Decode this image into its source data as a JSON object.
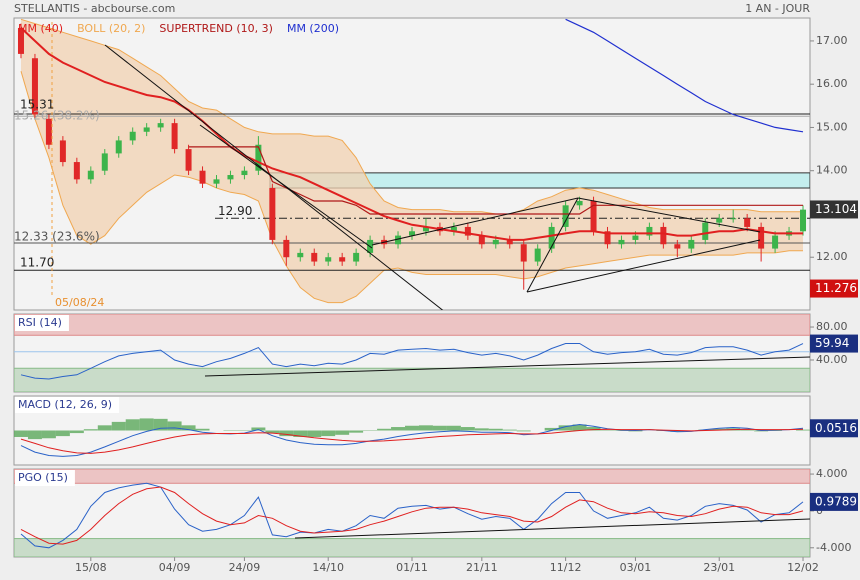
{
  "header": {
    "title": "STELLANTIS - abcbourse.com",
    "period": "1 AN - JOUR"
  },
  "chart_data": [
    {
      "type": "candlestick",
      "categories": [
        null,
        null,
        null,
        null,
        null,
        "15/08",
        null,
        null,
        null,
        null,
        null,
        "04/09",
        null,
        null,
        null,
        null,
        "24/09",
        null,
        null,
        null,
        null,
        null,
        "14/10",
        null,
        null,
        null,
        null,
        null,
        "01/11",
        null,
        null,
        null,
        null,
        "21/11",
        null,
        null,
        null,
        null,
        null,
        "11/12",
        null,
        null,
        null,
        null,
        "03/01",
        null,
        null,
        null,
        null,
        null,
        "23/01",
        null,
        null,
        null,
        null,
        null,
        "12/02"
      ],
      "open": [
        17.3,
        16.6,
        15.2,
        14.7,
        14.2,
        13.8,
        14.0,
        14.4,
        14.7,
        14.9,
        15.0,
        15.1,
        14.5,
        14.0,
        13.7,
        13.8,
        13.9,
        14.0,
        13.6,
        12.4,
        12.0,
        12.1,
        11.9,
        12.0,
        11.9,
        12.1,
        12.4,
        12.3,
        12.5,
        12.6,
        12.7,
        12.6,
        12.7,
        12.5,
        12.3,
        12.4,
        12.3,
        11.9,
        12.2,
        12.7,
        13.2,
        13.3,
        12.6,
        12.3,
        12.4,
        12.5,
        12.7,
        12.3,
        12.2,
        12.4,
        12.8,
        12.9,
        12.9,
        12.7,
        12.2,
        12.5,
        12.6
      ],
      "high": [
        17.4,
        16.7,
        15.3,
        14.8,
        14.3,
        14.1,
        14.5,
        14.8,
        15.0,
        15.1,
        15.2,
        15.2,
        14.6,
        14.1,
        13.9,
        14.0,
        14.1,
        14.8,
        13.7,
        12.5,
        12.2,
        12.2,
        12.1,
        12.1,
        12.2,
        12.5,
        12.5,
        12.6,
        12.7,
        12.9,
        12.8,
        12.8,
        12.8,
        12.6,
        12.5,
        12.5,
        12.4,
        12.3,
        12.8,
        13.3,
        13.4,
        13.4,
        12.7,
        12.5,
        12.6,
        12.8,
        12.8,
        12.4,
        12.5,
        12.9,
        13.0,
        13.1,
        13.0,
        12.8,
        12.6,
        12.7,
        13.2
      ],
      "low": [
        16.6,
        15.2,
        14.5,
        14.1,
        13.7,
        13.7,
        13.9,
        14.3,
        14.6,
        14.8,
        14.9,
        14.4,
        13.9,
        13.6,
        13.6,
        13.7,
        13.8,
        13.9,
        12.3,
        11.8,
        11.9,
        11.8,
        11.8,
        11.8,
        11.8,
        12.0,
        12.2,
        12.2,
        12.4,
        12.5,
        12.5,
        12.5,
        12.4,
        12.2,
        12.2,
        12.2,
        11.25,
        11.8,
        12.1,
        12.6,
        13.1,
        12.5,
        12.2,
        12.2,
        12.3,
        12.4,
        12.2,
        12.0,
        12.1,
        12.3,
        12.7,
        12.8,
        12.6,
        11.9,
        12.1,
        12.4,
        12.5
      ],
      "close": [
        16.7,
        15.3,
        14.6,
        14.2,
        13.8,
        14.0,
        14.4,
        14.7,
        14.9,
        15.0,
        15.1,
        14.5,
        14.0,
        13.7,
        13.8,
        13.9,
        14.0,
        14.6,
        12.4,
        12.0,
        12.1,
        11.9,
        12.0,
        11.9,
        12.1,
        12.4,
        12.3,
        12.5,
        12.6,
        12.7,
        12.6,
        12.7,
        12.5,
        12.3,
        12.4,
        12.3,
        11.9,
        12.2,
        12.7,
        13.2,
        13.3,
        12.6,
        12.3,
        12.4,
        12.5,
        12.7,
        12.3,
        12.2,
        12.4,
        12.8,
        12.9,
        12.9,
        12.7,
        12.2,
        12.5,
        12.6,
        13.1
      ],
      "up_color": "#3cb44b",
      "down_color": "#e02828",
      "ylim": [
        10.78,
        17.53
      ],
      "yticks": [
        {
          "value": 12,
          "label": "12.00"
        },
        {
          "value": 14,
          "label": "14.00"
        },
        {
          "value": 15,
          "label": "15.00"
        },
        {
          "value": 16,
          "label": "16.00"
        },
        {
          "value": 17,
          "label": "17.00"
        }
      ],
      "series": [
        {
          "name": "MM (40)",
          "color": "#e02020",
          "values": [
            17.3,
            17.0,
            16.7,
            16.5,
            16.35,
            16.2,
            16.05,
            15.95,
            15.85,
            15.75,
            15.7,
            15.6,
            15.4,
            15.15,
            14.85,
            14.55,
            14.35,
            14.2,
            14.05,
            13.95,
            13.85,
            13.7,
            13.55,
            13.4,
            13.25,
            13.1,
            12.95,
            12.85,
            12.75,
            12.7,
            12.65,
            12.6,
            12.55,
            12.5,
            12.45,
            12.4,
            12.4,
            12.45,
            12.5,
            12.55,
            12.6,
            12.6,
            12.55,
            12.55,
            12.55,
            12.55,
            12.55,
            12.5,
            12.5,
            12.55,
            12.6,
            12.6,
            12.65,
            12.6,
            12.55,
            12.55,
            12.55
          ]
        },
        {
          "name": "BOLL (20, 2)",
          "color": "#f0a850",
          "upper": [
            17.5,
            17.4,
            17.3,
            17.2,
            17.1,
            17.0,
            16.9,
            16.8,
            16.6,
            16.4,
            16.2,
            15.9,
            15.6,
            15.45,
            15.4,
            15.2,
            15.0,
            14.9,
            14.85,
            14.85,
            14.85,
            14.8,
            14.8,
            14.7,
            14.3,
            13.7,
            13.3,
            13.15,
            13.1,
            13.1,
            13.1,
            13.05,
            13.05,
            13.05,
            13.0,
            13.0,
            13.1,
            13.3,
            13.4,
            13.55,
            13.6,
            13.55,
            13.45,
            13.35,
            13.25,
            13.15,
            13.1,
            13.1,
            13.1,
            13.1,
            13.1,
            13.1,
            13.1,
            13.05,
            13.05,
            13.05,
            13.05
          ],
          "lower": [
            16.3,
            15.2,
            14.3,
            13.2,
            12.5,
            12.3,
            12.5,
            12.9,
            13.2,
            13.5,
            13.7,
            13.9,
            13.85,
            13.75,
            13.6,
            13.5,
            13.45,
            13.3,
            12.4,
            11.8,
            11.3,
            11.05,
            10.95,
            10.95,
            11.1,
            11.4,
            11.7,
            11.75,
            11.65,
            11.6,
            11.6,
            11.6,
            11.6,
            11.6,
            11.6,
            11.55,
            11.5,
            11.55,
            11.65,
            11.75,
            11.8,
            11.85,
            11.9,
            11.95,
            12.0,
            12.05,
            12.05,
            12.05,
            12.05,
            12.05,
            12.05,
            12.05,
            12.1,
            12.1,
            12.1,
            12.15,
            12.15
          ]
        },
        {
          "name": "SUPERTREND (10, 3)",
          "color": "#b01818",
          "values": [
            null,
            null,
            null,
            null,
            null,
            null,
            null,
            null,
            null,
            null,
            null,
            null,
            14.55,
            14.55,
            14.55,
            14.55,
            14.55,
            14.55,
            13.75,
            13.6,
            13.45,
            13.3,
            13.3,
            13.3,
            13.2,
            13.0,
            13.0,
            13.0,
            13.0,
            13.0,
            13.0,
            13.0,
            13.0,
            13.0,
            13.0,
            13.0,
            13.0,
            13.0,
            13.0,
            13.0,
            13.0,
            13.2,
            13.2,
            13.2,
            13.2,
            13.2,
            13.2,
            13.2,
            13.2,
            13.2,
            13.2,
            13.2,
            13.2,
            13.2,
            13.2,
            13.2,
            13.2
          ]
        },
        {
          "name": "MM (200)",
          "color": "#2030d0",
          "values": [
            null,
            null,
            null,
            null,
            null,
            null,
            null,
            null,
            null,
            null,
            null,
            null,
            null,
            null,
            null,
            null,
            null,
            null,
            null,
            null,
            null,
            null,
            null,
            null,
            null,
            null,
            null,
            null,
            null,
            null,
            null,
            null,
            null,
            null,
            null,
            null,
            null,
            null,
            null,
            17.5,
            17.35,
            17.2,
            17.0,
            16.8,
            16.6,
            16.4,
            16.2,
            16.0,
            15.8,
            15.6,
            15.45,
            15.3,
            15.2,
            15.1,
            15.0,
            14.95,
            14.9
          ]
        }
      ],
      "zone": [
        13.6,
        13.95
      ],
      "levels": [
        {
          "value": 15.31,
          "label": "15.31"
        },
        {
          "value": 15.26,
          "label": "15.26 (38.2%)"
        },
        {
          "value": 12.9,
          "label": "12.90"
        },
        {
          "value": 12.33,
          "label": "12.33 (23.6%)"
        },
        {
          "value": 11.7,
          "label": "11.70"
        }
      ],
      "date_annotation": "05/08/24",
      "price_tags": [
        13.104,
        11.276
      ],
      "price_tag_colors": [
        "#333333",
        "#d01010"
      ]
    },
    {
      "type": "line",
      "title": "RSI (14)",
      "ylim": [
        1.2,
        95.8
      ],
      "yticks": [
        {
          "value": 40,
          "label": "40.00"
        },
        {
          "value": 80,
          "label": "80.00"
        }
      ],
      "overbought": 70,
      "oversold": 30,
      "midline": 50,
      "series": [
        {
          "color": "#2a62c8",
          "values": [
            22,
            18,
            17,
            20,
            22,
            30,
            38,
            45,
            48,
            50,
            52,
            40,
            35,
            32,
            38,
            42,
            48,
            55,
            35,
            32,
            35,
            33,
            36,
            35,
            40,
            48,
            47,
            52,
            53,
            54,
            52,
            53,
            49,
            46,
            48,
            45,
            40,
            46,
            54,
            60,
            60,
            50,
            47,
            49,
            50,
            53,
            47,
            46,
            49,
            55,
            56,
            56,
            52,
            46,
            50,
            52,
            59.94
          ]
        }
      ]
    },
    {
      "type": "line",
      "title": "MACD (12, 26, 9)",
      "ylim": [
        -0.8,
        0.8
      ],
      "histogram": {
        "color": "#5aa85a",
        "values": [
          -0.15,
          -0.2,
          -0.18,
          -0.13,
          -0.06,
          0.03,
          0.12,
          0.2,
          0.26,
          0.28,
          0.27,
          0.21,
          0.12,
          0.04,
          0,
          -0.01,
          0.01,
          0.07,
          -0.06,
          -0.13,
          -0.15,
          -0.15,
          -0.13,
          -0.1,
          -0.05,
          0.01,
          0.04,
          0.08,
          0.11,
          0.12,
          0.11,
          0.11,
          0.08,
          0.05,
          0.04,
          0.02,
          -0.02,
          0,
          0.06,
          0.12,
          0.14,
          0.08,
          0.01,
          -0.01,
          -0.02,
          0,
          -0.01,
          -0.03,
          -0.01,
          0.02,
          0.04,
          0.05,
          0.02,
          -0.02,
          -0.01,
          0,
          0.02
        ]
      },
      "series": [
        {
          "color": "#2a62c8",
          "values": [
            -0.35,
            -0.5,
            -0.58,
            -0.6,
            -0.58,
            -0.5,
            -0.38,
            -0.25,
            -0.12,
            -0.02,
            0.05,
            0.06,
            0.02,
            -0.04,
            -0.07,
            -0.08,
            -0.06,
            0.02,
            -0.12,
            -0.22,
            -0.28,
            -0.32,
            -0.33,
            -0.33,
            -0.3,
            -0.24,
            -0.2,
            -0.14,
            -0.09,
            -0.05,
            -0.03,
            -0.01,
            -0.02,
            -0.04,
            -0.04,
            -0.05,
            -0.1,
            -0.08,
            0.0,
            0.09,
            0.14,
            0.1,
            0.04,
            0.01,
            0.0,
            0.02,
            0.0,
            -0.03,
            -0.02,
            0.02,
            0.05,
            0.07,
            0.05,
            0.0,
            0.01,
            0.02,
            0.0516
          ]
        },
        {
          "color": "#e02020",
          "values": [
            -0.2,
            -0.3,
            -0.4,
            -0.47,
            -0.52,
            -0.53,
            -0.5,
            -0.45,
            -0.38,
            -0.3,
            -0.22,
            -0.15,
            -0.1,
            -0.08,
            -0.07,
            -0.07,
            -0.07,
            -0.05,
            -0.06,
            -0.09,
            -0.13,
            -0.17,
            -0.2,
            -0.23,
            -0.25,
            -0.25,
            -0.24,
            -0.22,
            -0.2,
            -0.17,
            -0.14,
            -0.12,
            -0.1,
            -0.09,
            -0.08,
            -0.07,
            -0.08,
            -0.08,
            -0.06,
            -0.03,
            0.0,
            0.02,
            0.03,
            0.02,
            0.02,
            0.02,
            0.01,
            0.0,
            -0.01,
            0.0,
            0.01,
            0.02,
            0.03,
            0.02,
            0.02,
            0.02,
            0.03
          ]
        }
      ]
    },
    {
      "type": "line",
      "title": "PGO (15)",
      "ylim": [
        -5,
        4.55
      ],
      "yticks": [
        {
          "value": -4,
          "label": "-4.000"
        },
        0,
        {
          "value": 4,
          "label": "4.000"
        }
      ],
      "overbought": 3,
      "oversold": -3,
      "series": [
        {
          "color": "#2a62c8",
          "values": [
            -2.5,
            -3.8,
            -4.0,
            -3.2,
            -2.0,
            0.5,
            2.0,
            2.5,
            2.8,
            3.0,
            2.6,
            0.2,
            -1.5,
            -2.2,
            -2.0,
            -1.5,
            -0.5,
            1.5,
            -2.6,
            -2.8,
            -2.3,
            -2.4,
            -2.0,
            -2.2,
            -1.6,
            -0.5,
            -0.8,
            0.3,
            0.5,
            0.6,
            0.2,
            0.4,
            -0.3,
            -0.9,
            -0.6,
            -0.8,
            -2.0,
            -0.9,
            0.8,
            2.0,
            2.0,
            0.0,
            -0.8,
            -0.5,
            -0.2,
            0.4,
            -0.8,
            -1.0,
            -0.5,
            0.5,
            0.8,
            0.6,
            0.1,
            -1.2,
            -0.4,
            -0.2,
            0.9789
          ]
        },
        {
          "color": "#e02020",
          "values": [
            -2.0,
            -2.8,
            -3.5,
            -3.6,
            -3.2,
            -2.0,
            -0.5,
            0.8,
            1.8,
            2.4,
            2.6,
            2.0,
            0.8,
            -0.3,
            -1.1,
            -1.5,
            -1.3,
            -0.5,
            -0.8,
            -1.6,
            -2.2,
            -2.4,
            -2.3,
            -2.2,
            -2.0,
            -1.5,
            -1.1,
            -0.6,
            -0.1,
            0.3,
            0.4,
            0.4,
            0.2,
            -0.2,
            -0.4,
            -0.6,
            -1.1,
            -1.2,
            -0.6,
            0.4,
            1.2,
            1.0,
            0.3,
            -0.2,
            -0.3,
            -0.1,
            -0.2,
            -0.5,
            -0.6,
            -0.3,
            0.2,
            0.5,
            0.4,
            -0.2,
            -0.4,
            -0.4,
            0.0
          ]
        }
      ]
    }
  ]
}
